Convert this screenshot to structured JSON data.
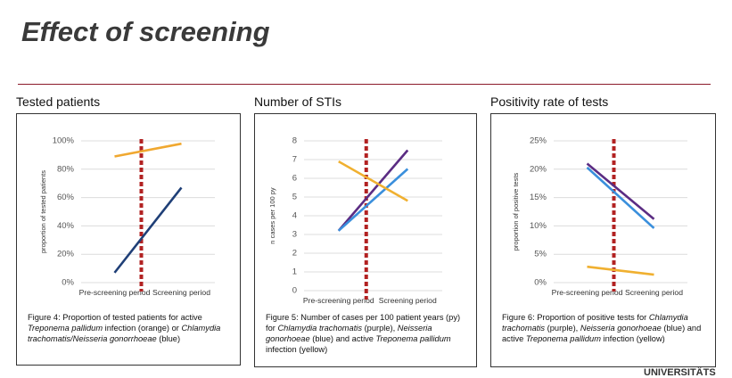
{
  "title": "Effect of screening",
  "footer": "UNIVERSITÄTS",
  "chart_data": [
    {
      "type": "line",
      "title": "Tested patients",
      "y_label": "proportion of tested patients",
      "categories": [
        "Pre-screening period",
        "Screening period"
      ],
      "ylim": [
        0,
        100
      ],
      "yticks": [
        {
          "value": 0,
          "label": "0%"
        },
        {
          "value": 20,
          "label": "20%"
        },
        {
          "value": 40,
          "label": "40%"
        },
        {
          "value": 60,
          "label": "60%"
        },
        {
          "value": 80,
          "label": "80%"
        },
        {
          "value": 100,
          "label": "100%"
        }
      ],
      "grid": true,
      "series": [
        {
          "color": "#f0a830",
          "values": [
            89,
            98
          ]
        },
        {
          "color": "#1f3f77",
          "values": [
            7,
            67
          ]
        }
      ],
      "caption": [
        {
          "text": "Figure 4: Proportion of tested patients for active ",
          "italic": false
        },
        {
          "text": "Treponema pallidum",
          "italic": true
        },
        {
          "text": " infection (orange) or ",
          "italic": false
        },
        {
          "text": "Chlamydia trachomatis/Neisseria gonorrhoeae",
          "italic": true
        },
        {
          "text": " (blue)",
          "italic": false
        }
      ]
    },
    {
      "type": "line",
      "title": "Number of STIs",
      "y_label": "n cases per 100 py",
      "categories": [
        "Pre-screening period",
        "Screening period"
      ],
      "ylim": [
        0,
        8
      ],
      "yticks": [
        0,
        1,
        2,
        3,
        4,
        5,
        6,
        7,
        8
      ],
      "grid": true,
      "series": [
        {
          "color": "#5b2c83",
          "values": [
            3.2,
            7.5
          ]
        },
        {
          "color": "#3a8fdc",
          "values": [
            3.2,
            6.5
          ]
        },
        {
          "color": "#f0b030",
          "values": [
            6.9,
            4.8
          ]
        }
      ],
      "caption": [
        {
          "text": "Figure 5: Number of cases per 100 patient years (py) for ",
          "italic": false
        },
        {
          "text": "Chlamydia trachomatis",
          "italic": true
        },
        {
          "text": " (purple), ",
          "italic": false
        },
        {
          "text": "Neisseria gonorhoeae",
          "italic": true
        },
        {
          "text": " (blue) and active ",
          "italic": false
        },
        {
          "text": "Treponema pallidum",
          "italic": true
        },
        {
          "text": " infection (yellow)",
          "italic": false
        }
      ]
    },
    {
      "type": "line",
      "title": "Positivity rate of tests",
      "y_label": "proportion of positive tests",
      "categories": [
        "Pre-screening period",
        "Screening period"
      ],
      "ylim": [
        0,
        25
      ],
      "yticks": [
        {
          "value": 0,
          "label": "0%"
        },
        {
          "value": 5,
          "label": "5%"
        },
        {
          "value": 10,
          "label": "10%"
        },
        {
          "value": 15,
          "label": "15%"
        },
        {
          "value": 20,
          "label": "20%"
        },
        {
          "value": 25,
          "label": "25%"
        }
      ],
      "grid": true,
      "series": [
        {
          "color": "#5b2c83",
          "values": [
            21,
            11.2
          ]
        },
        {
          "color": "#3a8fdc",
          "values": [
            20.3,
            9.6
          ]
        },
        {
          "color": "#f0b030",
          "values": [
            2.8,
            1.4
          ]
        }
      ],
      "caption": [
        {
          "text": "Figure 6: Proportion of positive tests for ",
          "italic": false
        },
        {
          "text": "Chlamydia trachomatis",
          "italic": true
        },
        {
          "text": " (purple), ",
          "italic": false
        },
        {
          "text": "Neisseria gonorhoeae",
          "italic": true
        },
        {
          "text": " (blue) and active ",
          "italic": false
        },
        {
          "text": "Treponema pallidum",
          "italic": true
        },
        {
          "text": " infection (yellow)",
          "italic": false
        }
      ]
    }
  ]
}
